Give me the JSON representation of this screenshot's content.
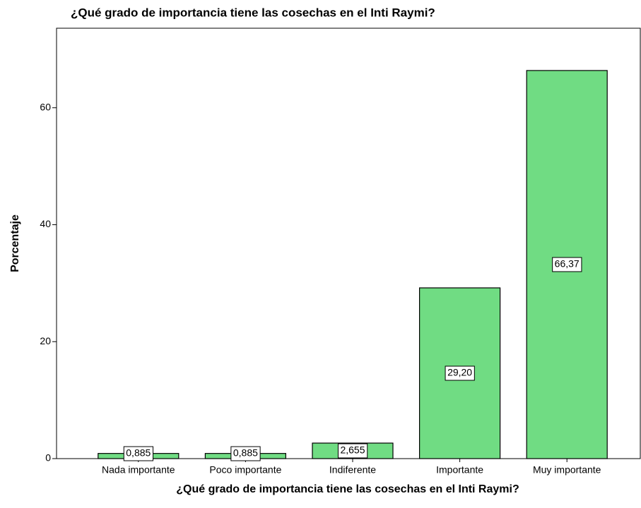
{
  "chart_data": {
    "type": "bar",
    "title": "¿Qué grado de importancia tiene las cosechas en el Inti Raymi?",
    "x_label": "¿Qué grado de importancia tiene las cosechas en el Inti Raymi?",
    "y_label": "Porcentaje",
    "categories": [
      "Nada importante",
      "Poco importante",
      "Indiferente",
      "Importante",
      "Muy importante"
    ],
    "values": [
      0.885,
      0.885,
      2.655,
      29.2,
      66.37
    ],
    "value_labels": [
      "0,885",
      "0,885",
      "2,655",
      "29,20",
      "66,37"
    ],
    "color": "#70dc83",
    "ylim": [
      0,
      73.6
    ],
    "yticks": [
      0,
      20,
      40,
      60
    ],
    "grid": false
  }
}
